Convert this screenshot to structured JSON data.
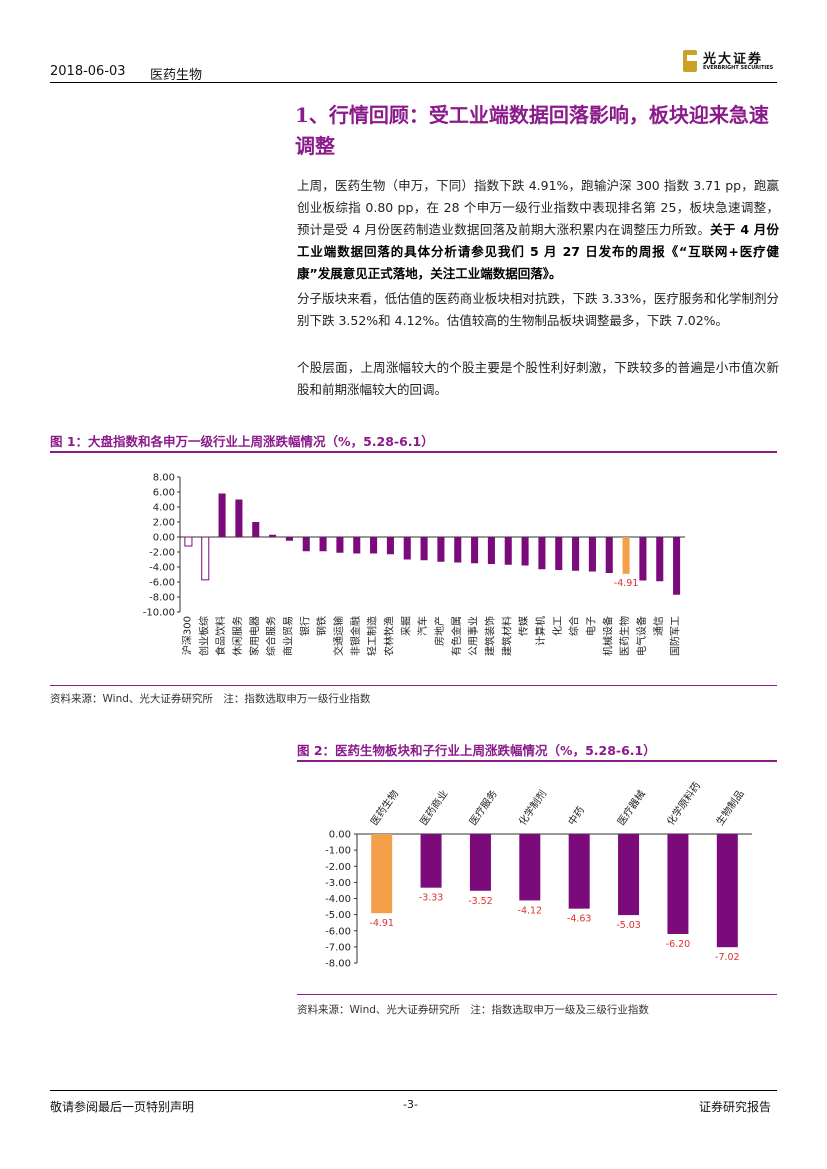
{
  "header": {
    "date": "2018-06-03",
    "sector": "医药生物",
    "logo_cn": "光大证券",
    "logo_en": "EVERBRIGHT SECURITIES"
  },
  "section": {
    "title": "1、行情回顾：受工业端数据回落影响，板块迎来急速调整"
  },
  "paragraphs": {
    "p1_text": "上周，医药生物（申万，下同）指数下跌 4.91%，跑输沪深 300 指数 3.71 pp，跑赢创业板综指 0.80 pp，在 28 个申万一级行业指数中表现排名第 25，板块急速调整，预计是受 4 月份医药制造业数据回落及前期大涨积累内在调整压力所致。",
    "p1_bold": "关于 4 月份工业端数据回落的具体分析请参见我们 5 月 27 日发布的周报《“互联网+医疗健康”发展意见正式落地，关注工业端数据回落》。",
    "p2": "分子版块来看，低估值的医药商业板块相对抗跌，下跌 3.33%，医疗服务和化学制剂分别下跌 3.52%和 4.12%。估值较高的生物制品板块调整最多，下跌 7.02%。",
    "p3": "个股层面，上周涨幅较大的个股主要是个股性利好刺激，下跌较多的普遍是小市值次新股和前期涨幅较大的回调。"
  },
  "figure1": {
    "title": "图 1：大盘指数和各申万一级行业上周涨跌幅情况（%，5.28-6.1）",
    "source": "资料来源：Wind、光大证券研究所　注：指数选取申万一级行业指数"
  },
  "figure2": {
    "title": "图 2：医药生物板块和子行业上周涨跌幅情况（%，5.28-6.1）",
    "source": "资料来源：Wind、光大证券研究所　注：指数选取申万一级及三级行业指数"
  },
  "footer": {
    "disclaimer": "敬请参阅最后一页特别声明",
    "page": "-3-",
    "report_type": "证券研究报告"
  },
  "colors": {
    "accent": "#8b1a8b",
    "highlight": "#f4a04b",
    "bar": "#7b0a7b"
  },
  "chart_data": [
    {
      "type": "bar",
      "categories": [
        "沪深300",
        "创业板综",
        "食品饮料",
        "休闲服务",
        "家用电器",
        "综合服务",
        "商业贸易",
        "银行",
        "钢铁",
        "交通运输",
        "非银金融",
        "轻工制造",
        "农林牧渔",
        "采掘",
        "汽车",
        "房地产",
        "有色金属",
        "公用事业",
        "建筑装饰",
        "建筑材料",
        "传媒",
        "计算机",
        "化工",
        "综合",
        "电子",
        "机械设备",
        "医药生物",
        "电气设备",
        "通信",
        "国防军工"
      ],
      "values": [
        -1.2,
        -5.71,
        5.8,
        5.0,
        2.0,
        0.3,
        -0.5,
        -1.9,
        -1.9,
        -2.1,
        -2.2,
        -2.2,
        -2.3,
        -3.0,
        -3.1,
        -3.3,
        -3.4,
        -3.5,
        -3.6,
        -3.7,
        -3.8,
        -4.3,
        -4.4,
        -4.5,
        -4.6,
        -4.8,
        -4.91,
        -5.8,
        -5.9,
        -7.7
      ],
      "highlight_index": 26,
      "hollow_indices": [
        0,
        1
      ],
      "data_labels": [
        {
          "index": 26,
          "text": "-4.91"
        }
      ],
      "yticks": [
        "8.00",
        "6.00",
        "4.00",
        "2.00",
        "0.00",
        "-2.00",
        "-4.00",
        "-6.00",
        "-8.00",
        "-10.00"
      ],
      "ylim": [
        -10,
        8
      ]
    },
    {
      "type": "bar",
      "categories": [
        "医药生物",
        "医药商业",
        "医疗服务",
        "化学制剂",
        "中药",
        "医疗器械",
        "化学原料药",
        "生物制品"
      ],
      "values": [
        -4.91,
        -3.33,
        -3.52,
        -4.12,
        -4.63,
        -5.03,
        -6.2,
        -7.02
      ],
      "data_labels": [
        "-4.91",
        "-3.33",
        "-3.52",
        "-4.12",
        "-4.63",
        "-5.03",
        "-6.20",
        "-7.02"
      ],
      "highlight_index": 0,
      "yticks": [
        "0.00",
        "-1.00",
        "-2.00",
        "-3.00",
        "-4.00",
        "-5.00",
        "-6.00",
        "-7.00",
        "-8.00"
      ],
      "ylim": [
        -8,
        0
      ]
    }
  ]
}
